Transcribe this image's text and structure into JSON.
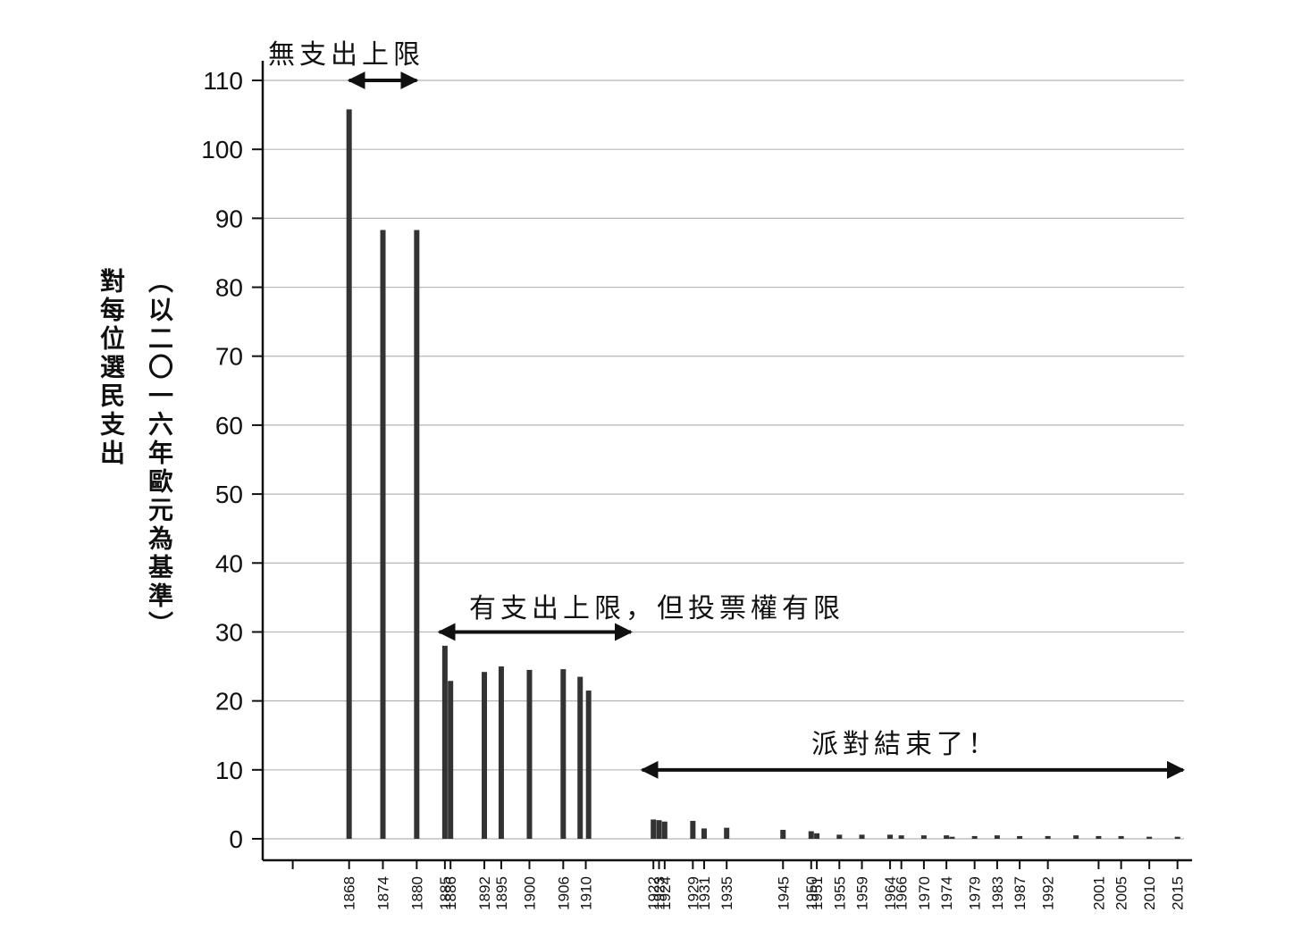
{
  "chart_data": {
    "type": "bar",
    "ylabel_main": "對每位選民支出",
    "ylabel_sub": "（以二〇一六年歐元為基準）",
    "ylim": [
      0,
      110
    ],
    "yticks": [
      0,
      10,
      20,
      30,
      40,
      50,
      60,
      70,
      80,
      90,
      100,
      110
    ],
    "grid": true,
    "bar_color": "#333333",
    "xlim": [
      1856,
      2016
    ],
    "x_tick_labels": [
      "1868",
      "1874",
      "1880",
      "1885",
      "1886",
      "1892",
      "1895",
      "1900",
      "1906",
      "1910",
      "1922",
      "1923",
      "1924",
      "1929",
      "1931",
      "1935",
      "1945",
      "1950",
      "1951",
      "1955",
      "1959",
      "1964",
      "1966",
      "1970",
      "1974",
      "1979",
      "1983",
      "1987",
      "1992",
      "2001",
      "2005",
      "2010",
      "2015"
    ],
    "bars": [
      {
        "x": 1868,
        "value": 105.8
      },
      {
        "x": 1874,
        "value": 88.3
      },
      {
        "x": 1880,
        "value": 88.3
      },
      {
        "x": 1885,
        "value": 28.0
      },
      {
        "x": 1886,
        "value": 22.9
      },
      {
        "x": 1892,
        "value": 24.2
      },
      {
        "x": 1895,
        "value": 25.0
      },
      {
        "x": 1900,
        "value": 24.5
      },
      {
        "x": 1906,
        "value": 24.6
      },
      {
        "x": 1909,
        "value": 23.5
      },
      {
        "x": 1910.5,
        "value": 21.5
      },
      {
        "x": 1922,
        "value": 2.8
      },
      {
        "x": 1923,
        "value": 2.7
      },
      {
        "x": 1924,
        "value": 2.5
      },
      {
        "x": 1929,
        "value": 2.6
      },
      {
        "x": 1931,
        "value": 1.5
      },
      {
        "x": 1935,
        "value": 1.6
      },
      {
        "x": 1945,
        "value": 1.3
      },
      {
        "x": 1950,
        "value": 1.1
      },
      {
        "x": 1951,
        "value": 0.8
      },
      {
        "x": 1955,
        "value": 0.6
      },
      {
        "x": 1959,
        "value": 0.6
      },
      {
        "x": 1964,
        "value": 0.6
      },
      {
        "x": 1966,
        "value": 0.5
      },
      {
        "x": 1970,
        "value": 0.5
      },
      {
        "x": 1974,
        "value": 0.5
      },
      {
        "x": 1975,
        "value": 0.3
      },
      {
        "x": 1979,
        "value": 0.4
      },
      {
        "x": 1983,
        "value": 0.5
      },
      {
        "x": 1987,
        "value": 0.4
      },
      {
        "x": 1992,
        "value": 0.4
      },
      {
        "x": 1997,
        "value": 0.5
      },
      {
        "x": 2001,
        "value": 0.4
      },
      {
        "x": 2005,
        "value": 0.4
      },
      {
        "x": 2010,
        "value": 0.3
      },
      {
        "x": 2015,
        "value": 0.3
      }
    ],
    "annotations": [
      {
        "id": "no_cap",
        "text": "無支出上限",
        "x_from": 1868,
        "x_to": 1880,
        "y": 110
      },
      {
        "id": "cap",
        "text": "有支出上限，但投票權有限",
        "x_from": 1884,
        "x_to": 1918,
        "y": 30
      },
      {
        "id": "party_over",
        "text": "派對結束了！",
        "x_from": 1920,
        "x_to": 2016,
        "y": 10
      }
    ]
  }
}
